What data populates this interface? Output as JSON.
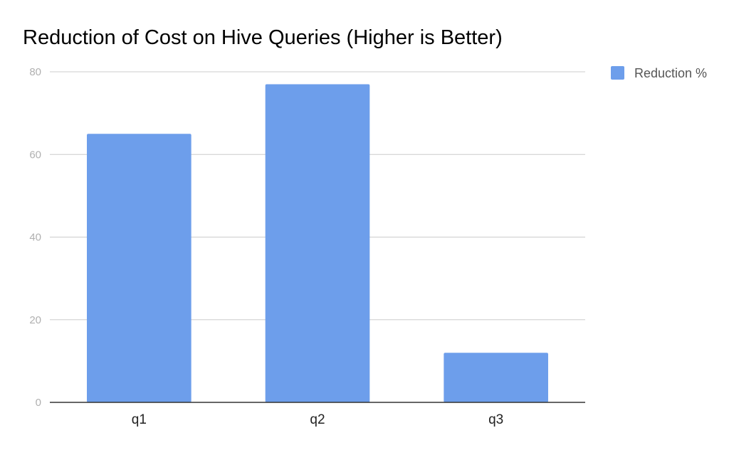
{
  "chart_data": {
    "type": "bar",
    "title": "Reduction of Cost on Hive Queries (Higher is Better)",
    "categories": [
      "q1",
      "q2",
      "q3"
    ],
    "series": [
      {
        "name": "Reduction %",
        "values": [
          65,
          77,
          12
        ],
        "color": "#6d9eeb"
      }
    ],
    "ylim": [
      0,
      80
    ],
    "yticks": [
      0,
      20,
      40,
      60,
      80
    ],
    "grid": true,
    "legend": "right"
  }
}
